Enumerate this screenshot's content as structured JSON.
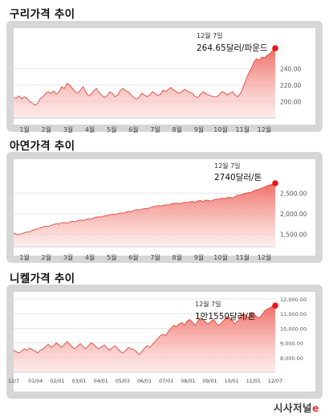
{
  "chart_data": [
    {
      "type": "area",
      "title": "구리가격 추이",
      "x_tick_labels": [
        "1월",
        "2월",
        "3월",
        "4월",
        "5월",
        "6월",
        "7월",
        "8월",
        "9월",
        "10월",
        "11월",
        "12월"
      ],
      "y_ticks": [
        {
          "value": 200,
          "label": "200.00"
        },
        {
          "value": 220,
          "label": "220.00"
        },
        {
          "value": 240,
          "label": "240.00"
        }
      ],
      "ylim": [
        180,
        264.65
      ],
      "grid": true,
      "annotation": {
        "date": "12월 7일",
        "value_label": "264.65달러/파운드",
        "value": 264.65
      },
      "values": [
        205,
        204,
        207,
        203,
        206,
        204,
        200,
        198,
        196,
        198,
        204,
        206,
        210,
        212,
        210,
        213,
        209,
        212,
        218,
        216,
        222,
        220,
        216,
        212,
        210,
        214,
        218,
        212,
        207,
        209,
        213,
        216,
        211,
        208,
        205,
        207,
        212,
        210,
        206,
        208,
        214,
        216,
        213,
        212,
        208,
        205,
        203,
        205,
        210,
        208,
        206,
        208,
        212,
        210,
        207,
        209,
        214,
        212,
        215,
        217,
        214,
        212,
        210,
        212,
        215,
        213,
        211,
        210,
        206,
        205,
        209,
        212,
        210,
        208,
        207,
        206,
        206,
        208,
        212,
        211,
        208,
        210,
        212,
        208,
        206,
        210,
        218,
        226,
        234,
        240,
        248,
        252,
        250,
        254,
        253,
        256,
        258,
        262,
        264.65
      ]
    },
    {
      "type": "area",
      "title": "아연가격 추이",
      "x_tick_labels": [
        "1월",
        "2월",
        "3월",
        "4월",
        "5월",
        "6월",
        "7월",
        "8월",
        "9월",
        "10월",
        "11월",
        "12월"
      ],
      "y_ticks": [
        {
          "value": 1500,
          "label": "1,500.00"
        },
        {
          "value": 2000,
          "label": "2,000.00"
        },
        {
          "value": 2500,
          "label": "2,500.00"
        }
      ],
      "ylim": [
        1200,
        2740
      ],
      "grid": true,
      "annotation": {
        "date": "12월 7일",
        "value_label": "2740달러/톤",
        "value": 2740
      },
      "values": [
        1530,
        1510,
        1490,
        1520,
        1540,
        1560,
        1560,
        1600,
        1620,
        1630,
        1660,
        1680,
        1700,
        1690,
        1720,
        1740,
        1760,
        1750,
        1780,
        1790,
        1770,
        1800,
        1820,
        1800,
        1830,
        1850,
        1830,
        1860,
        1880,
        1870,
        1900,
        1920,
        1930,
        1920,
        1950,
        1960,
        1970,
        1990,
        1980,
        2000,
        2020,
        2010,
        2040,
        2060,
        2050,
        2080,
        2100,
        2090,
        2110,
        2130,
        2120,
        2150,
        2170,
        2180,
        2200,
        2190,
        2200,
        2220,
        2210,
        2240,
        2250,
        2260,
        2240,
        2260,
        2280,
        2270,
        2290,
        2300,
        2280,
        2310,
        2320,
        2300,
        2330,
        2320,
        2310,
        2340,
        2360,
        2350,
        2380,
        2370,
        2390,
        2400,
        2380,
        2420,
        2450,
        2460,
        2480,
        2500,
        2510,
        2520,
        2560,
        2580,
        2600,
        2620,
        2650,
        2680,
        2700,
        2720,
        2740
      ]
    },
    {
      "type": "area",
      "title": "니켈가격 추이",
      "x_tick_labels": [
        "12/7",
        "01/04",
        "02/01",
        "03/01",
        "04/01",
        "05/03",
        "06/01",
        "07/01",
        "08/01",
        "09/01",
        "10/01",
        "11/01",
        "12/07"
      ],
      "y_ticks": [
        {
          "value": 8000,
          "label": "8,000.00"
        },
        {
          "value": 9000,
          "label": "9,000.00"
        },
        {
          "value": 10000,
          "label": "10,000.00"
        },
        {
          "value": 11000,
          "label": "11,000.00"
        },
        {
          "value": 12000,
          "label": "12,000.00"
        }
      ],
      "ylim": [
        7000,
        12000
      ],
      "grid": true,
      "annotation": {
        "date": "12월 7일",
        "value_label": "1만1550달러/톤",
        "value": 11550
      },
      "values": [
        8500,
        8400,
        8300,
        8450,
        8600,
        8500,
        8650,
        8550,
        8450,
        8300,
        8500,
        8600,
        8750,
        8900,
        8700,
        8800,
        9000,
        8850,
        8700,
        8900,
        9100,
        8900,
        8700,
        8600,
        8800,
        8950,
        8750,
        8600,
        8800,
        9000,
        8900,
        8700,
        8600,
        8750,
        8850,
        8650,
        8500,
        8700,
        8800,
        8600,
        8400,
        8300,
        8500,
        8700,
        8600,
        8550,
        8400,
        8200,
        8400,
        8650,
        8800,
        8700,
        8900,
        9100,
        9300,
        9500,
        9600,
        9500,
        9800,
        10000,
        10200,
        10100,
        10300,
        10400,
        10200,
        10500,
        10600,
        10400,
        10200,
        10500,
        10700,
        10600,
        10400,
        10300,
        10500,
        10600,
        10300,
        10200,
        10400,
        10600,
        10800,
        10700,
        10500,
        10300,
        10500,
        10800,
        11000,
        10900,
        10700,
        11100,
        11000,
        10800,
        10700,
        10900,
        11200,
        11300,
        11400,
        11500,
        11550
      ]
    }
  ],
  "branding": {
    "main": "시사저널",
    "mark": "e"
  }
}
